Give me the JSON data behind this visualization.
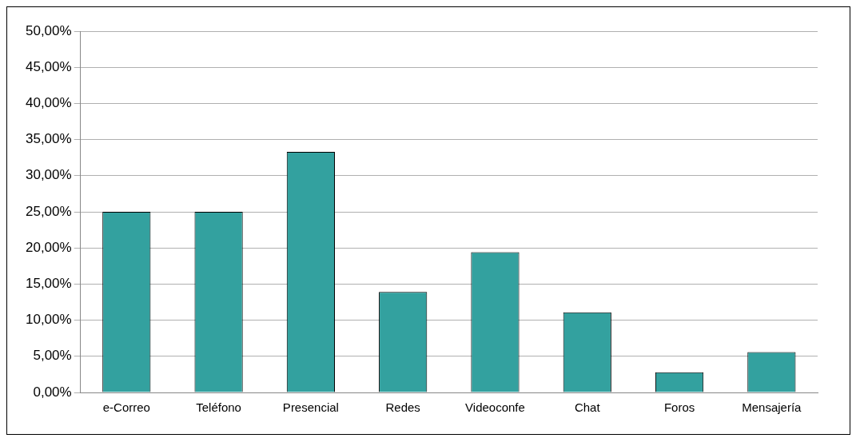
{
  "chart_data": {
    "type": "bar",
    "categories": [
      "e-Correo",
      "Teléfono",
      "Presencial",
      "Redes",
      "Videoconfe",
      "Chat",
      "Foros",
      "Mensajería"
    ],
    "values": [
      25,
      25,
      33.3,
      13.9,
      19.4,
      11.1,
      2.8,
      5.6
    ],
    "color": "#33a19f",
    "ylim": [
      0,
      50
    ],
    "yticks": [
      {
        "value": 0,
        "label": "0,00%"
      },
      {
        "value": 5,
        "label": "5,00%"
      },
      {
        "value": 10,
        "label": "10,00%"
      },
      {
        "value": 15,
        "label": "15,00%"
      },
      {
        "value": 20,
        "label": "20,00%"
      },
      {
        "value": 25,
        "label": "25,00%"
      },
      {
        "value": 30,
        "label": "30,00%"
      },
      {
        "value": 35,
        "label": "35,00%"
      },
      {
        "value": 40,
        "label": "40,00%"
      },
      {
        "value": 45,
        "label": "45,00%"
      },
      {
        "value": 50,
        "label": "50,00%"
      }
    ],
    "grid": "y",
    "legend": false
  }
}
